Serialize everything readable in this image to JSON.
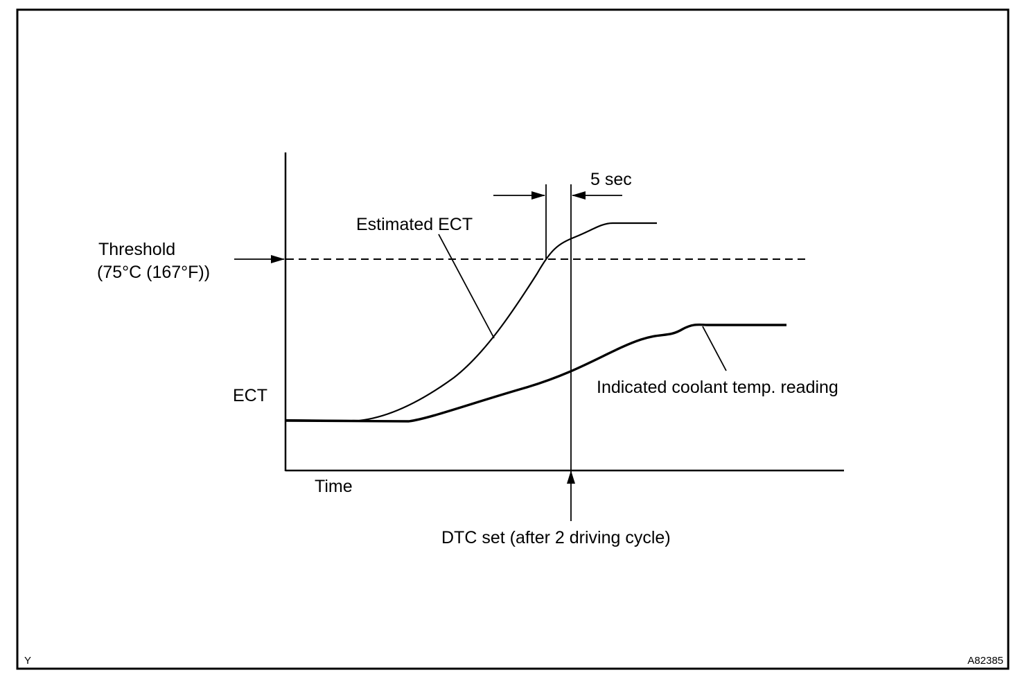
{
  "diagram": {
    "threshold_label": "Threshold",
    "threshold_value": "(75°C (167°F))",
    "y_axis_label": "ECT",
    "x_axis_label": "Time",
    "estimated_curve_label": "Estimated ECT",
    "indicated_curve_label": "Indicated coolant temp. reading",
    "interval_label": "5 sec",
    "dtc_label": "DTC set (after 2 driving cycle)",
    "corner_code_left": "Y",
    "corner_code_right": "A82385"
  }
}
